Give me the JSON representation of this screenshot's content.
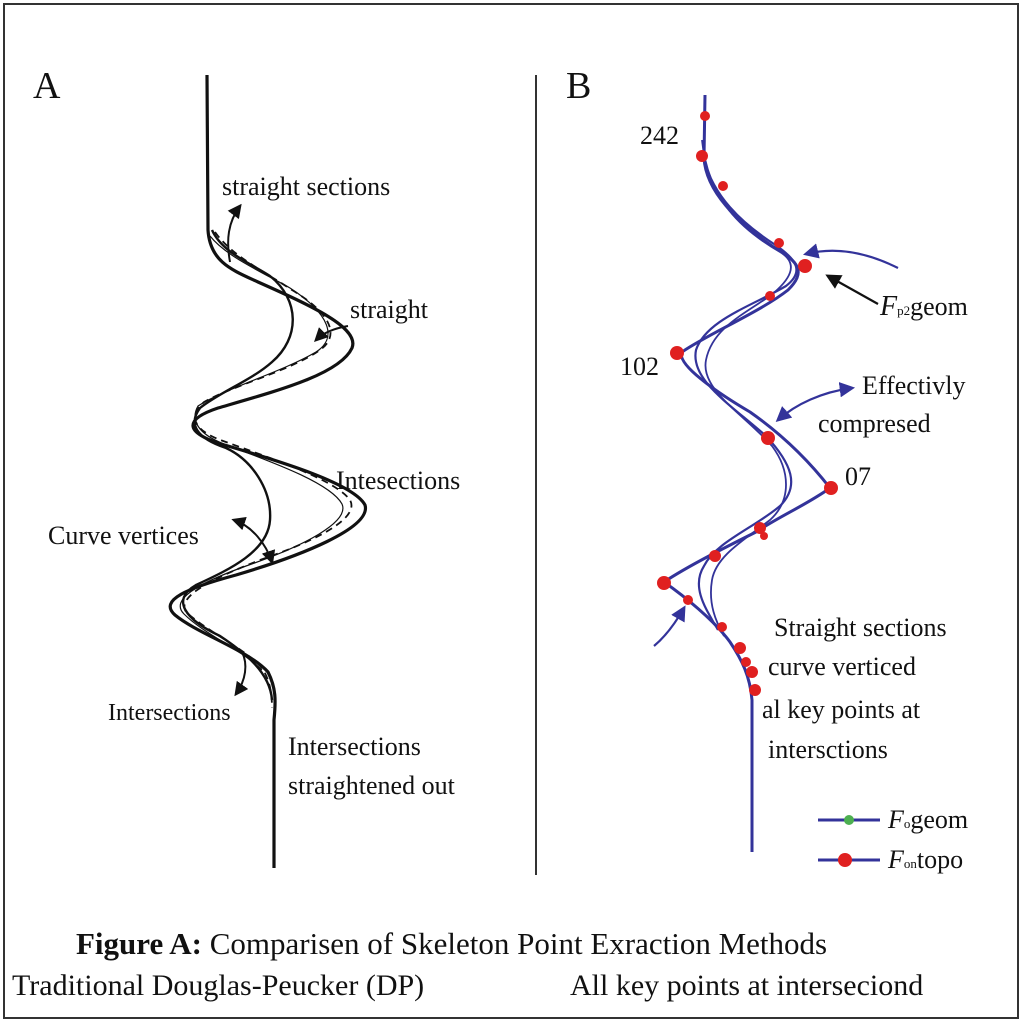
{
  "panels": {
    "a": {
      "letter": "A",
      "labels": {
        "straight_sections": "straight sections",
        "straight": "straight",
        "intesections": "Intesections",
        "curve_vertices": "Curve vertices",
        "intersections": "Intersections",
        "straightened_1": "Intersections",
        "straightened_2": "straightened out"
      }
    },
    "b": {
      "letter": "B",
      "numbers": {
        "n242": "242",
        "n102": "102",
        "n07": "07"
      },
      "labels": {
        "f_arrow_sub": "p2",
        "f_arrow_rest": "geom",
        "effectively_1": "Effectivly",
        "effectively_2": "compresed",
        "note_1": "Straight sections",
        "note_2": "curve verticed",
        "note_3": "al key points at",
        "note_4": "intersctions"
      },
      "legend": [
        {
          "symbol": "F",
          "sub": "o",
          "rest": "geom",
          "marker_color": "#4caf50"
        },
        {
          "symbol": "F",
          "sub": "on",
          "rest": "topo",
          "marker_color": "#e02020"
        }
      ]
    }
  },
  "colors": {
    "line_b": "#33339a",
    "point_b": "#e02020",
    "line_a": "#111111"
  },
  "caption": {
    "title": "Figure A: Comparisen of Skeleton Point Exraction Methods",
    "left": "Traditional Douglas-Peucker (DP)",
    "right": "All key points at interseciond"
  }
}
